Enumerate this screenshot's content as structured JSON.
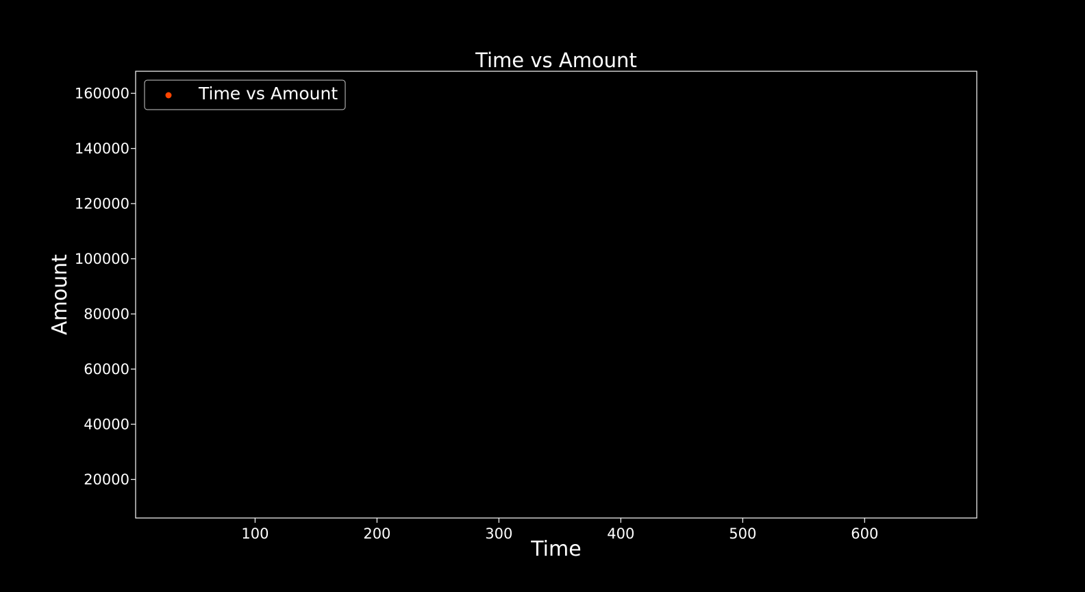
{
  "chart_data": {
    "type": "scatter",
    "title": "Time vs Amount",
    "xlabel": "Time",
    "ylabel": "Amount",
    "xlim": [
      2,
      692
    ],
    "ylim": [
      6000,
      168000
    ],
    "x_ticks": [
      100,
      200,
      300,
      400,
      500,
      600
    ],
    "y_ticks": [
      20000,
      40000,
      60000,
      80000,
      100000,
      120000,
      140000,
      160000
    ],
    "x_tick_labels": [
      "100",
      "200",
      "300",
      "400",
      "500",
      "600"
    ],
    "y_tick_labels": [
      "20000",
      "40000",
      "60000",
      "80000",
      "100000",
      "120000",
      "140000",
      "160000"
    ],
    "grid": false,
    "legend_position": "top-left",
    "series": [
      {
        "name": "Time vs Amount",
        "color": "#ff4500",
        "points": []
      }
    ]
  },
  "colors": {
    "background": "#000000",
    "axes": "#ffffff",
    "text": "#ffffff"
  }
}
